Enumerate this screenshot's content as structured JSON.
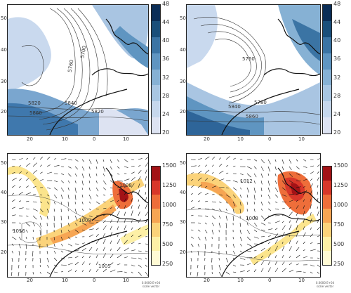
{
  "panels": [
    {
      "id": "top-left",
      "footer": [
        "",
        ""
      ]
    },
    {
      "id": "top-right",
      "footer": [
        "",
        ""
      ]
    },
    {
      "id": "bottom-left",
      "footer": [
        "0.0000 E+04",
        "scale vector"
      ]
    },
    {
      "id": "bottom-right",
      "footer": [
        "0.0000 E+04",
        "scale vector"
      ]
    }
  ],
  "lat_ticks": [
    "50",
    "40",
    "30",
    "20"
  ],
  "lon_ticks": [
    "20",
    "10",
    "0",
    "10"
  ],
  "contour_labels_top_left": [
    "5760",
    "5820",
    "5840",
    "5860",
    "5700",
    "5820"
  ],
  "contour_labels_top_right": [
    "5760",
    "5840",
    "5860",
    "5780"
  ],
  "contour_labels_bottom_left": [
    "1016",
    "1008",
    "1005",
    "1008"
  ],
  "contour_labels_bottom_right": [
    "1012",
    "1008"
  ],
  "colorbar_top": {
    "labels": [
      "48",
      "44",
      "40",
      "36",
      "32",
      "28",
      "24",
      "20"
    ],
    "colors": [
      "#0b2e57",
      "#1a4f7a",
      "#3b74a4",
      "#5f95c1",
      "#86b1d4",
      "#a8c6e2",
      "#c6d7ec",
      "#dde3f2"
    ]
  },
  "colorbar_bottom": {
    "labels": [
      "1500",
      "1250",
      "1000",
      "750",
      "500",
      "250"
    ],
    "colors": [
      "#a31216",
      "#d8372a",
      "#ee6e3a",
      "#f6a553",
      "#fbd37a",
      "#fdf0a6",
      "#fffad4"
    ]
  }
}
